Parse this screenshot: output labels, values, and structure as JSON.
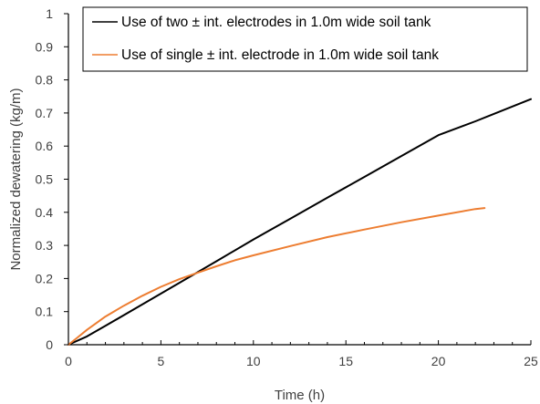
{
  "chart_data": {
    "type": "line",
    "title": "",
    "xlabel": "Time (h)",
    "ylabel": "Normalized dewatering (kg/m)",
    "xlim": [
      0,
      25
    ],
    "ylim": [
      0,
      1
    ],
    "x_ticks": [
      0,
      5,
      10,
      15,
      20,
      25
    ],
    "x_tick_labels": [
      "0",
      "5",
      "10",
      "15",
      "20",
      "25"
    ],
    "y_ticks": [
      0,
      0.1,
      0.2,
      0.3,
      0.4,
      0.5,
      0.6,
      0.7,
      0.8,
      0.9,
      1
    ],
    "y_tick_labels": [
      "0",
      "0.1",
      "0.2",
      "0.3",
      "0.4",
      "0.5",
      "0.6",
      "0.7",
      "0.8",
      "0.9",
      "1"
    ],
    "grid": false,
    "legend_position": "top-right",
    "series": [
      {
        "name": "Use of two ± int. electrodes in 1.0m wide soil tank",
        "color": "#000000",
        "x": [
          0,
          1,
          2,
          4,
          6,
          8,
          10,
          12,
          14,
          16,
          18,
          20,
          22,
          25
        ],
        "y": [
          0,
          0.025,
          0.057,
          0.122,
          0.187,
          0.252,
          0.318,
          0.381,
          0.444,
          0.507,
          0.57,
          0.633,
          0.675,
          0.742
        ]
      },
      {
        "name": "Use of single ± int. electrode in 1.0m wide soil tank",
        "color": "#ED7D31",
        "x": [
          0,
          0.5,
          1,
          2,
          3,
          4,
          5,
          6,
          7,
          8,
          9,
          10,
          12,
          14,
          16,
          18,
          20,
          22,
          22.5
        ],
        "y": [
          0,
          0.022,
          0.045,
          0.085,
          0.118,
          0.148,
          0.175,
          0.198,
          0.218,
          0.237,
          0.255,
          0.27,
          0.298,
          0.325,
          0.348,
          0.37,
          0.39,
          0.41,
          0.413
        ]
      }
    ]
  }
}
